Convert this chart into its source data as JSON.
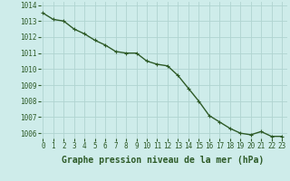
{
  "x": [
    0,
    1,
    2,
    3,
    4,
    5,
    6,
    7,
    8,
    9,
    10,
    11,
    12,
    13,
    14,
    15,
    16,
    17,
    18,
    19,
    20,
    21,
    22,
    23
  ],
  "y": [
    1013.5,
    1013.1,
    1013.0,
    1012.5,
    1012.2,
    1011.8,
    1011.5,
    1011.1,
    1011.0,
    1011.0,
    1010.5,
    1010.3,
    1010.2,
    1009.6,
    1008.8,
    1008.0,
    1007.1,
    1006.7,
    1006.3,
    1006.0,
    1005.9,
    1006.1,
    1005.8,
    1005.8
  ],
  "ylim": [
    1005.5,
    1014.2
  ],
  "yticks": [
    1006,
    1007,
    1008,
    1009,
    1010,
    1011,
    1012,
    1013,
    1014
  ],
  "xticks": [
    0,
    1,
    2,
    3,
    4,
    5,
    6,
    7,
    8,
    9,
    10,
    11,
    12,
    13,
    14,
    15,
    16,
    17,
    18,
    19,
    20,
    21,
    22,
    23
  ],
  "xlabel": "Graphe pression niveau de la mer (hPa)",
  "line_color": "#2d5a27",
  "marker": "+",
  "bg_color": "#ceecea",
  "grid_color": "#b0d4d0",
  "tick_label_color": "#2d5a27",
  "xlabel_color": "#2d5a27",
  "tick_fontsize": 5.5,
  "xlabel_fontsize": 7.0,
  "grid_linewidth": 0.6,
  "line_linewidth": 1.0,
  "markersize": 3.5,
  "markeredgewidth": 0.8
}
